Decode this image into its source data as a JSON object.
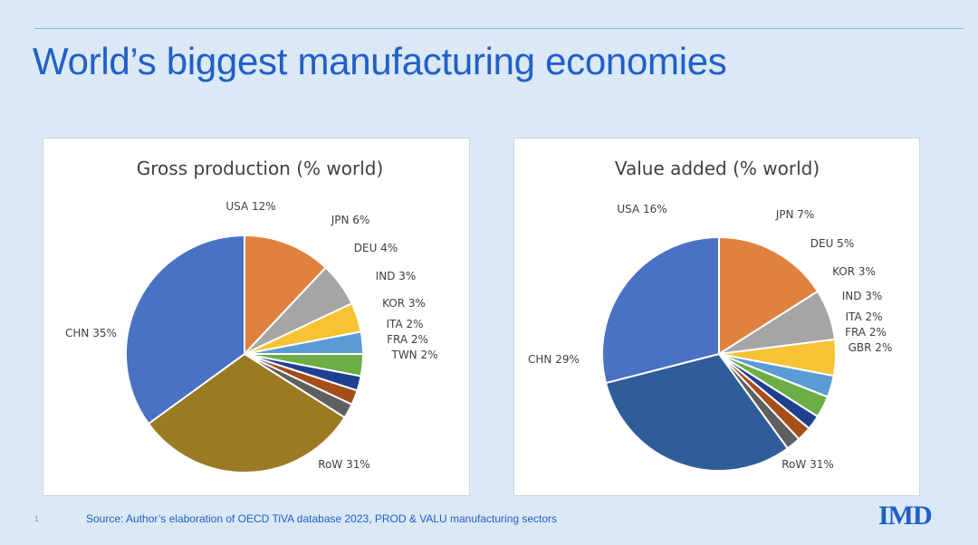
{
  "slide": {
    "title": "World’s biggest manufacturing economies",
    "source": "Source: Author’s elaboration of OECD  TiVA database 2023, PROD & VALU manufacturing sectors",
    "page_number": "1",
    "logo_text": "IMD"
  },
  "colors": {
    "title": "#1f5fc8",
    "background": "#dbe8f5"
  },
  "chart_data": [
    {
      "type": "pie",
      "title": "Gross production  (% world)",
      "slices": [
        {
          "label": "USA 12%",
          "value": 12,
          "color": "#e0823f"
        },
        {
          "label": "JPN 6%",
          "value": 6,
          "color": "#a5a5a5"
        },
        {
          "label": "DEU 4%",
          "value": 4,
          "color": "#f7c233"
        },
        {
          "label": "IND 3%",
          "value": 3,
          "color": "#5b9bd5"
        },
        {
          "label": "KOR 3%",
          "value": 3,
          "color": "#6cae45"
        },
        {
          "label": "ITA 2%",
          "value": 2,
          "color": "#1f3f8f"
        },
        {
          "label": "FRA 2%",
          "value": 2,
          "color": "#a64e1a"
        },
        {
          "label": "TWN 2%",
          "value": 2,
          "color": "#5f5f5f"
        },
        {
          "label": "RoW 31%",
          "value": 31,
          "color": "#9a7a22"
        },
        {
          "label": "CHN 35%",
          "value": 35,
          "color": "#4a72c4"
        }
      ]
    },
    {
      "type": "pie",
      "title": "Value added (% world)",
      "slices": [
        {
          "label": "USA 16%",
          "value": 16,
          "color": "#e0823f"
        },
        {
          "label": "JPN 7%",
          "value": 7,
          "color": "#a5a5a5"
        },
        {
          "label": "DEU 5%",
          "value": 5,
          "color": "#f7c233"
        },
        {
          "label": "KOR 3%",
          "value": 3,
          "color": "#5b9bd5"
        },
        {
          "label": "IND 3%",
          "value": 3,
          "color": "#6cae45"
        },
        {
          "label": "ITA 2%",
          "value": 2,
          "color": "#1f3f8f"
        },
        {
          "label": "FRA 2%",
          "value": 2,
          "color": "#a64e1a"
        },
        {
          "label": "GBR 2%",
          "value": 2,
          "color": "#5f5f5f"
        },
        {
          "label": "RoW 31%",
          "value": 31,
          "color": "#2f5d99"
        },
        {
          "label": "CHN 29%",
          "value": 29,
          "color": "#4a72c4"
        }
      ]
    }
  ]
}
